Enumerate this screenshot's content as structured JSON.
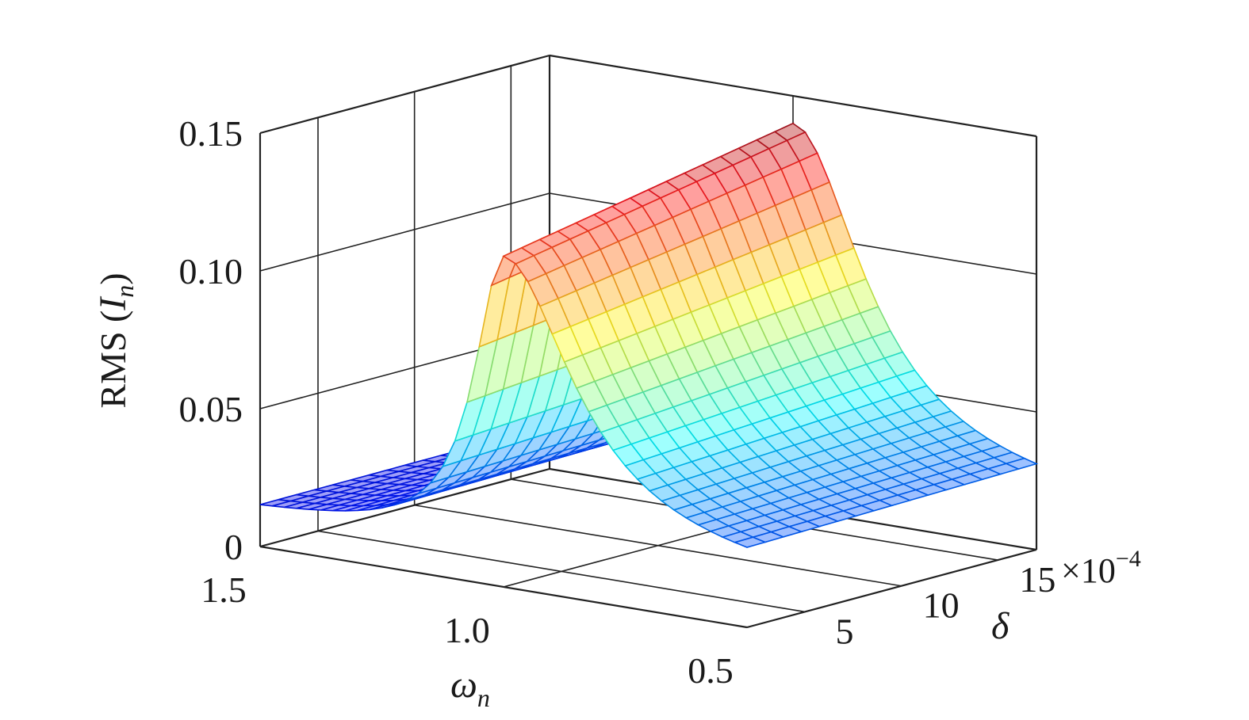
{
  "chart_data": {
    "type": "surface3d",
    "title": "",
    "x_axis": {
      "symbol": "ω",
      "subscript": "n",
      "range": [
        0.5,
        1.5
      ],
      "ticks": [
        1.5,
        1.0,
        0.5
      ],
      "tick_labels": [
        "1.5",
        "1.0",
        "0.5"
      ]
    },
    "y_axis": {
      "symbol": "δ",
      "range": [
        2,
        17
      ],
      "ticks": [
        5,
        10,
        15
      ],
      "tick_labels": [
        "5",
        "10",
        "15"
      ],
      "multiplier": "×10",
      "multiplier_exponent": "−4"
    },
    "z_axis": {
      "label_prefix": "RMS (",
      "label_symbol": "I",
      "label_subscript": "n",
      "label_suffix": ")",
      "range": [
        0,
        0.15
      ],
      "ticks": [
        0,
        0.05,
        0.1,
        0.15
      ],
      "tick_labels": [
        "0",
        "0.05",
        "0.10",
        "0.15"
      ]
    },
    "surface": {
      "description_values": "RMS(In) response surface peaking near ωn≈1.0",
      "omega": [
        1.5,
        1.45,
        1.4,
        1.35,
        1.3,
        1.25,
        1.2,
        1.15,
        1.1,
        1.05,
        1.0,
        0.95,
        0.9,
        0.85,
        0.8,
        0.75,
        0.7,
        0.65,
        0.6,
        0.55,
        0.5
      ],
      "delta": [
        2,
        3.5,
        5,
        6.5,
        8,
        9.5,
        11,
        12.5,
        14,
        15.5,
        17
      ],
      "peak_omega": 1.0,
      "peak_rms_low_delta": 0.12,
      "peak_rms_high_delta": 0.14,
      "rms_at_omega_1_5": 0.013,
      "rms_at_omega_0_5": 0.018,
      "colormap": "jet"
    },
    "grid": true,
    "box": true,
    "legend": "none"
  }
}
